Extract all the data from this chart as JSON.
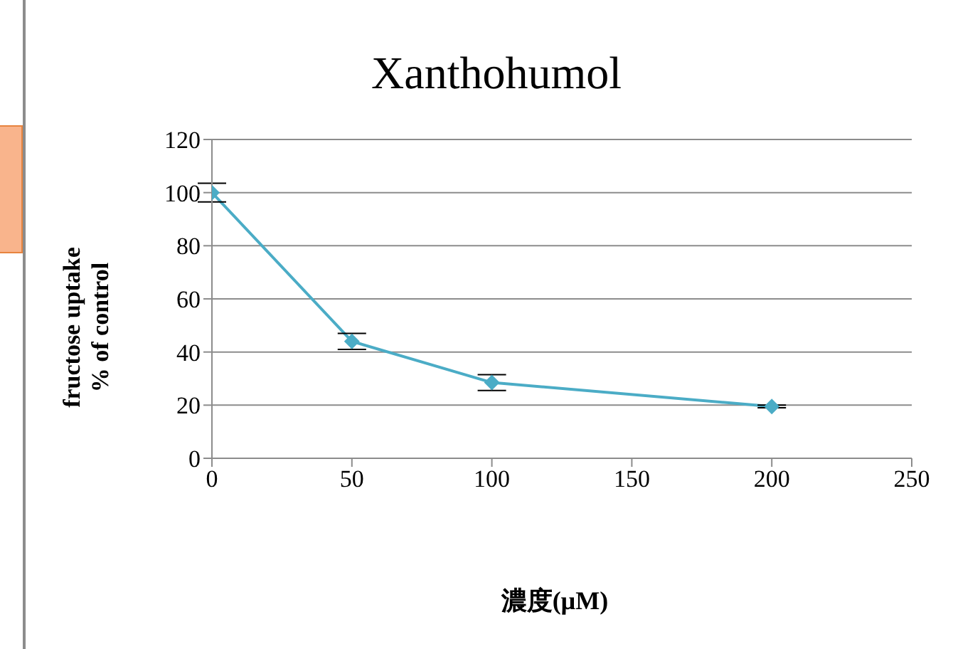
{
  "chart_data": {
    "type": "line",
    "title": "Xanthohumol",
    "xlabel": "濃度(µM)",
    "ylabel": "fructose uptake\n% of control",
    "x": [
      0,
      50,
      100,
      200
    ],
    "series": [
      {
        "color": "#4bacc6",
        "values": [
          100,
          44,
          28.5,
          19.5
        ],
        "errors": [
          3.5,
          3,
          3,
          0.5
        ]
      }
    ],
    "xlim": [
      0,
      250
    ],
    "xticks": [
      0,
      50,
      100,
      150,
      200,
      250
    ],
    "ylim": [
      0,
      120
    ],
    "yticks": [
      0,
      20,
      40,
      60,
      80,
      100,
      120
    ],
    "grid": "y",
    "marker": "diamond",
    "line_style": "solid"
  }
}
